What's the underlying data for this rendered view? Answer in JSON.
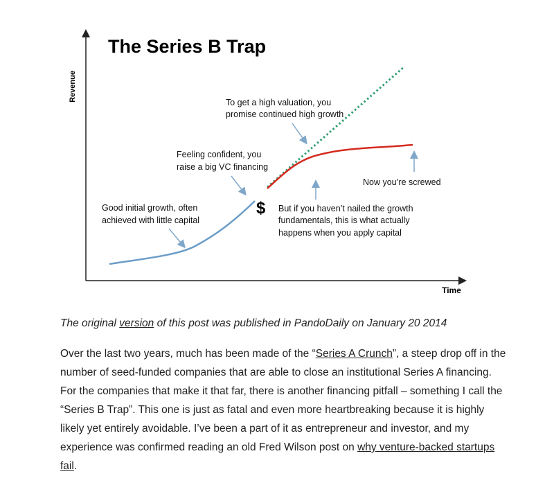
{
  "chart": {
    "title": "The Series B Trap",
    "ylabel": "Revenue",
    "xlabel": "Time",
    "dollar_sign": "$",
    "annotations": {
      "initial_growth": [
        "Good initial growth, often",
        "achieved with little capital"
      ],
      "confident": [
        "Feeling confident, you",
        "raise a big VC financing"
      ],
      "high_valuation": [
        "To get a high valuation, you",
        "promise continued high growth"
      ],
      "screwed": [
        "Now you’re screwed"
      ],
      "not_nailed": [
        "But if you haven’t nailed the growth",
        "fundamentals, this is what actually",
        "happens when you apply capital"
      ]
    },
    "colors": {
      "initial_curve": "#6a9cc8",
      "actual_curve": "#d42a1e",
      "promised_line": "#2e9e6e",
      "arrow": "#7fa7c9"
    }
  },
  "caption": {
    "prefix": "The original ",
    "link": "version",
    "suffix": " of this post was published in PandoDaily on January 20 2014"
  },
  "body": {
    "part1": "Over the last two years, much has been made of the “",
    "link1": "Series A Crunch",
    "part2": "”, a steep drop off in the number of seed-funded companies that are able to close an institutional Series A financing.  For the companies that make it that far, there is another financing pitfall – something I call the “Series B Trap”.  This one is just as fatal and even more heartbreaking because it is highly likely yet entirely avoidable.  I’ve been a part of it as entrepreneur and investor, and my experience was confirmed reading an old Fred Wilson post on ",
    "link2": "why venture-backed startups fail",
    "part3": "."
  }
}
